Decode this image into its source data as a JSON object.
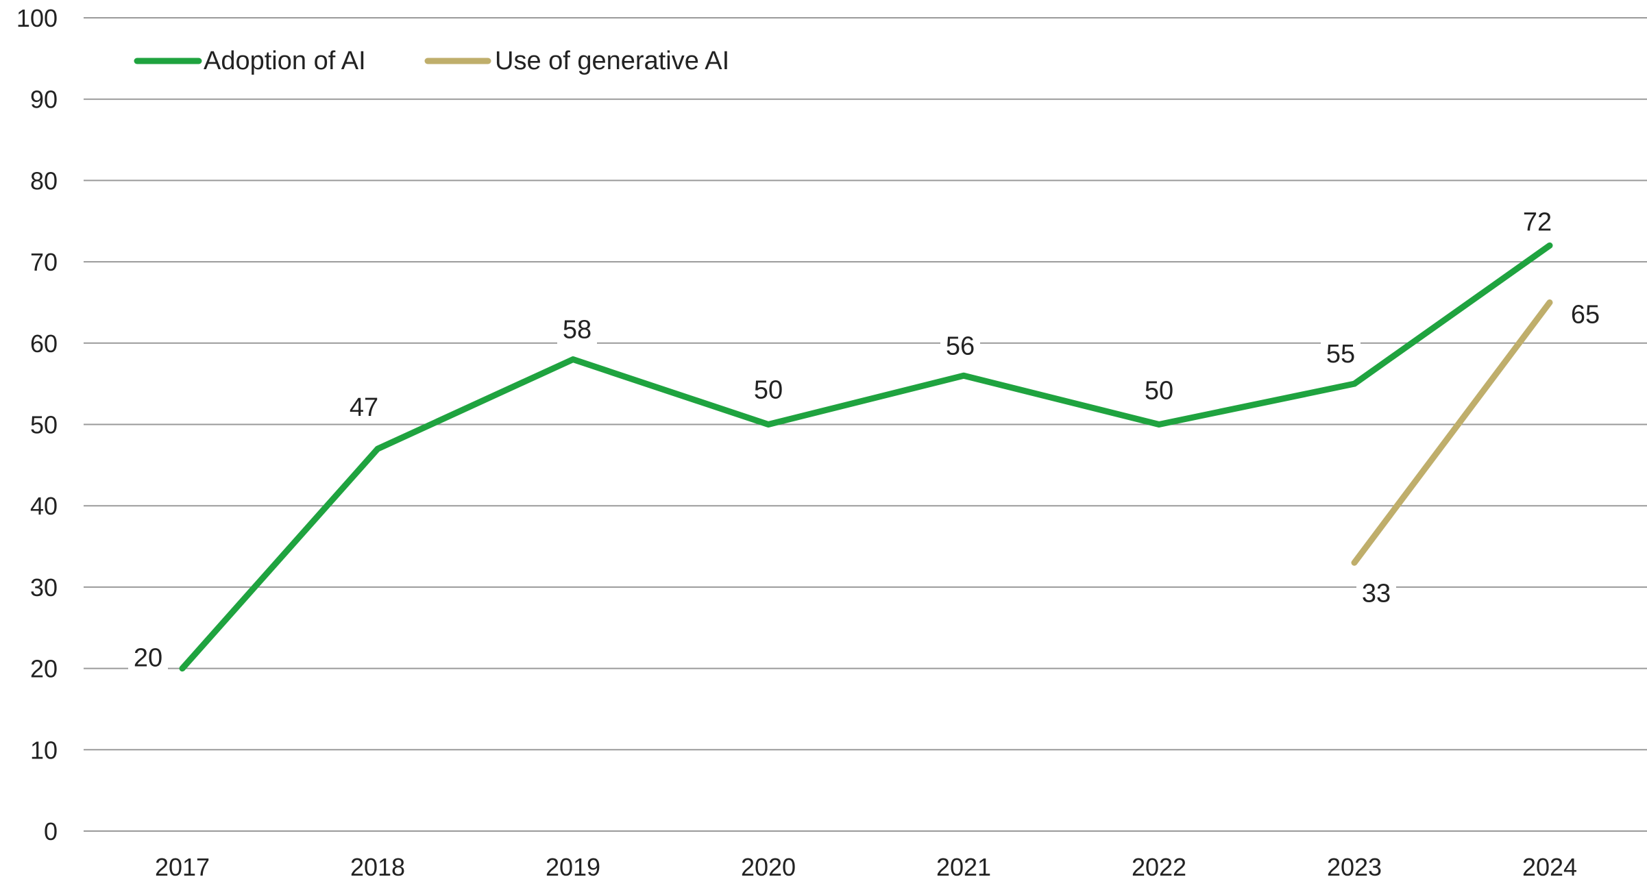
{
  "chart_data": {
    "type": "line",
    "title": "",
    "xlabel": "",
    "ylabel": "",
    "ylim": [
      0,
      100
    ],
    "yticks": [
      0,
      10,
      20,
      30,
      40,
      50,
      60,
      70,
      80,
      90,
      100
    ],
    "categories": [
      "2017",
      "2018",
      "2019",
      "2020",
      "2021",
      "2022",
      "2023",
      "2024"
    ],
    "grid": true,
    "legend_position": "top-left",
    "series": [
      {
        "name": "Adoption of AI",
        "color": "#1fa33f",
        "values": [
          20,
          47,
          58,
          50,
          56,
          50,
          55,
          72
        ],
        "labels": [
          "20",
          "47",
          "58",
          "50",
          "56",
          "50",
          "55",
          "72"
        ]
      },
      {
        "name": "Use of generative AI",
        "color": "#bfae6b",
        "values": [
          null,
          null,
          null,
          null,
          null,
          null,
          33,
          65
        ],
        "labels": [
          null,
          null,
          null,
          null,
          null,
          null,
          "33",
          "65"
        ]
      }
    ]
  }
}
